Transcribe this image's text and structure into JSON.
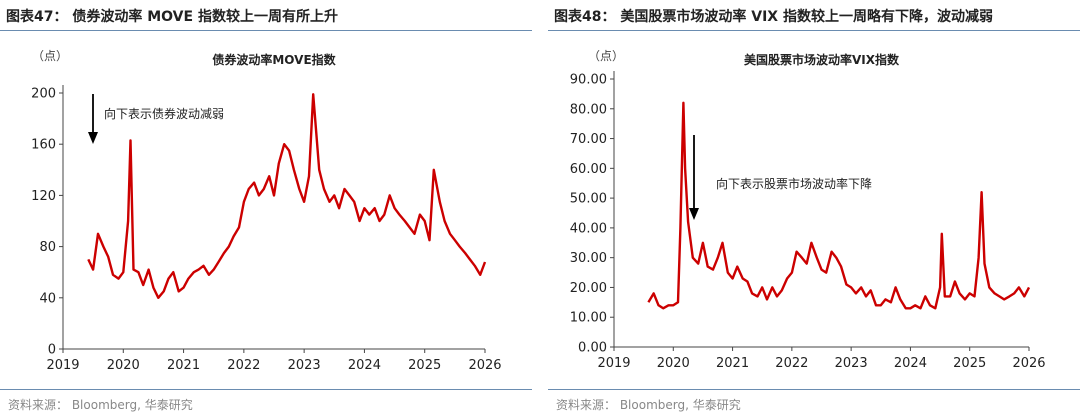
{
  "figures": [
    {
      "id": "left",
      "caption": "图表47： 债券波动率 MOVE 指数较上一周有所上升",
      "source": "资料来源： Bloomberg, 华泰研究",
      "colors": {
        "line": "#cc0000",
        "axis": "#444444",
        "rule": "#6a8cb0"
      }
    },
    {
      "id": "right",
      "caption": "图表48： 美国股票市场波动率 VIX 指数较上一周略有下降，波动减弱",
      "source": "资料来源： Bloomberg, 华泰研究",
      "colors": {
        "line": "#cc0000",
        "axis": "#444444",
        "rule": "#6a8cb0"
      }
    }
  ],
  "chart_data": [
    {
      "type": "line",
      "title": "债券波动率MOVE指数",
      "ylabel": "（点）",
      "xlabel": "",
      "ylim": [
        0,
        200
      ],
      "yticks": [
        0,
        40,
        80,
        120,
        160,
        200
      ],
      "xlim": [
        2019,
        2026
      ],
      "xticks": [
        2019,
        2020,
        2021,
        2022,
        2023,
        2024,
        2025,
        2026
      ],
      "annotation": "向下表示债券波动减弱",
      "series": [
        {
          "x": [
            2019.42,
            2019.5,
            2019.58,
            2019.67,
            2019.75,
            2019.83,
            2019.92,
            2020.0,
            2020.08,
            2020.12,
            2020.17,
            2020.25,
            2020.33,
            2020.42,
            2020.5,
            2020.58,
            2020.67,
            2020.75,
            2020.83,
            2020.92,
            2021.0,
            2021.08,
            2021.17,
            2021.25,
            2021.33,
            2021.42,
            2021.5,
            2021.58,
            2021.67,
            2021.75,
            2021.83,
            2021.92,
            2022.0,
            2022.08,
            2022.17,
            2022.25,
            2022.33,
            2022.42,
            2022.5,
            2022.58,
            2022.67,
            2022.75,
            2022.83,
            2022.92,
            2023.0,
            2023.08,
            2023.15,
            2023.25,
            2023.33,
            2023.42,
            2023.5,
            2023.58,
            2023.67,
            2023.75,
            2023.83,
            2023.92,
            2024.0,
            2024.08,
            2024.17,
            2024.25,
            2024.33,
            2024.42,
            2024.5,
            2024.58,
            2024.67,
            2024.75,
            2024.83,
            2024.92,
            2025.0,
            2025.08,
            2025.15,
            2025.25,
            2025.33,
            2025.42,
            2025.5,
            2025.58,
            2025.67,
            2025.75,
            2025.83,
            2025.92,
            2026.0
          ],
          "y": [
            70,
            62,
            90,
            80,
            72,
            58,
            55,
            60,
            100,
            163,
            62,
            60,
            50,
            62,
            48,
            40,
            45,
            55,
            60,
            45,
            48,
            55,
            60,
            62,
            65,
            58,
            62,
            68,
            75,
            80,
            88,
            95,
            115,
            125,
            130,
            120,
            125,
            135,
            120,
            145,
            160,
            155,
            140,
            125,
            115,
            135,
            199,
            140,
            125,
            115,
            120,
            110,
            125,
            120,
            115,
            100,
            110,
            105,
            110,
            100,
            105,
            120,
            110,
            105,
            100,
            95,
            90,
            105,
            100,
            85,
            140,
            115,
            100,
            90,
            85,
            80,
            75,
            70,
            65,
            58,
            68
          ]
        }
      ]
    },
    {
      "type": "line",
      "title": "美国股票市场波动率VIX指数",
      "ylabel": "（点）",
      "xlabel": "",
      "ylim": [
        0,
        90
      ],
      "yticks": [
        0,
        10,
        20,
        30,
        40,
        50,
        60,
        70,
        80,
        90
      ],
      "ytick_labels": [
        "0.00",
        "10.00",
        "20.00",
        "30.00",
        "40.00",
        "50.00",
        "60.00",
        "70.00",
        "80.00",
        "90.00"
      ],
      "xlim": [
        2019,
        2026
      ],
      "xticks": [
        2019,
        2020,
        2021,
        2022,
        2023,
        2024,
        2025,
        2026
      ],
      "annotation": "向下表示股票市场波动率下降",
      "series": [
        {
          "x": [
            2019.58,
            2019.67,
            2019.75,
            2019.83,
            2019.92,
            2020.0,
            2020.08,
            2020.12,
            2020.17,
            2020.2,
            2020.25,
            2020.33,
            2020.42,
            2020.5,
            2020.58,
            2020.67,
            2020.75,
            2020.83,
            2020.92,
            2021.0,
            2021.08,
            2021.17,
            2021.25,
            2021.33,
            2021.42,
            2021.5,
            2021.58,
            2021.67,
            2021.75,
            2021.83,
            2021.92,
            2022.0,
            2022.08,
            2022.17,
            2022.25,
            2022.33,
            2022.42,
            2022.5,
            2022.58,
            2022.67,
            2022.75,
            2022.83,
            2022.92,
            2023.0,
            2023.08,
            2023.17,
            2023.25,
            2023.33,
            2023.42,
            2023.5,
            2023.58,
            2023.67,
            2023.75,
            2023.83,
            2023.92,
            2024.0,
            2024.08,
            2024.17,
            2024.25,
            2024.33,
            2024.42,
            2024.5,
            2024.53,
            2024.58,
            2024.67,
            2024.75,
            2024.83,
            2024.92,
            2025.0,
            2025.08,
            2025.15,
            2025.2,
            2025.25,
            2025.33,
            2025.42,
            2025.5,
            2025.58,
            2025.67,
            2025.75,
            2025.83,
            2025.92,
            2026.0
          ],
          "y": [
            15,
            18,
            14,
            13,
            14,
            14,
            15,
            40,
            82,
            60,
            42,
            30,
            28,
            35,
            27,
            26,
            30,
            35,
            25,
            23,
            27,
            23,
            22,
            18,
            17,
            20,
            16,
            20,
            17,
            19,
            23,
            25,
            32,
            30,
            28,
            35,
            30,
            26,
            25,
            32,
            30,
            27,
            21,
            20,
            18,
            20,
            17,
            19,
            14,
            14,
            16,
            15,
            20,
            16,
            13,
            13,
            14,
            13,
            17,
            14,
            13,
            20,
            38,
            17,
            17,
            22,
            18,
            16,
            18,
            17,
            30,
            52,
            28,
            20,
            18,
            17,
            16,
            17,
            18,
            20,
            17,
            20
          ]
        }
      ]
    }
  ]
}
